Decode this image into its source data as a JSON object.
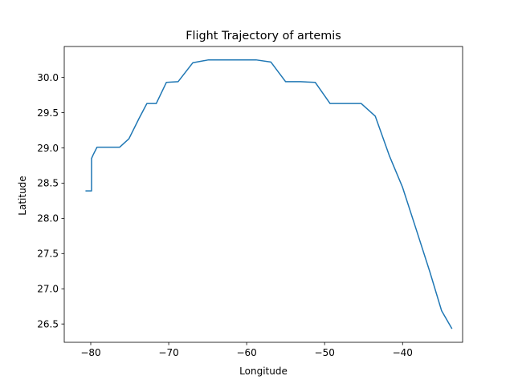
{
  "chart_data": {
    "type": "line",
    "title": "Flight Trajectory of artemis",
    "xlabel": "Longitude",
    "ylabel": "Latitude",
    "xlim": [
      -83.4,
      -32.3
    ],
    "ylim": [
      26.24,
      30.44
    ],
    "xticks": [
      -80,
      -70,
      -60,
      -50,
      -40
    ],
    "xtick_labels": [
      "−80",
      "−70",
      "−60",
      "−50",
      "−40"
    ],
    "yticks": [
      26.5,
      27.0,
      27.5,
      28.0,
      28.5,
      29.0,
      29.5,
      30.0
    ],
    "ytick_labels": [
      "26.5",
      "27.0",
      "27.5",
      "28.0",
      "28.5",
      "29.0",
      "29.5",
      "30.0"
    ],
    "grid": false,
    "legend": "none",
    "series": [
      {
        "color": "#1f77b4",
        "x": [
          -80.6,
          -79.9,
          -79.9,
          -79.9,
          -79.7,
          -79.2,
          -76.3,
          -75.1,
          -73.8,
          -72.8,
          -71.6,
          -70.3,
          -68.8,
          -66.9,
          -64.9,
          -58.8,
          -56.9,
          -55.0,
          -53.1,
          -51.2,
          -49.3,
          -45.3,
          -43.5,
          -41.7,
          -40.0,
          -38.3,
          -36.5,
          -35.0,
          -33.7
        ],
        "y": [
          28.39,
          28.39,
          28.7,
          28.85,
          28.9,
          29.01,
          29.01,
          29.13,
          29.42,
          29.63,
          29.63,
          29.93,
          29.94,
          30.21,
          30.25,
          30.25,
          30.22,
          29.94,
          29.94,
          29.93,
          29.63,
          29.63,
          29.45,
          28.89,
          28.44,
          27.86,
          27.24,
          26.69,
          26.44
        ]
      }
    ]
  }
}
